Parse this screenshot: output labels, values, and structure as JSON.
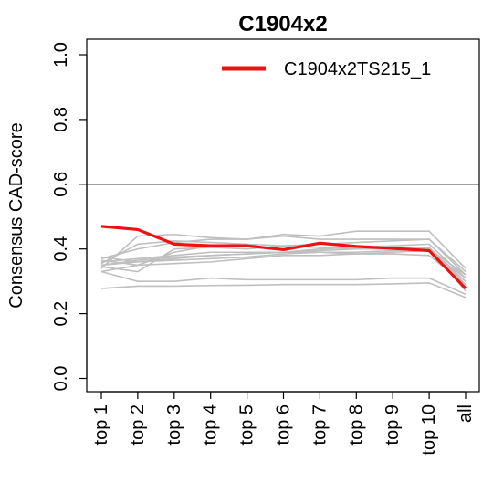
{
  "chart_data": {
    "type": "line",
    "title": "C1904x2",
    "ylabel": "Consensus CAD-score",
    "xlabel": "",
    "ylim": [
      0.0,
      1.0
    ],
    "yticks": [
      "0.0",
      "0.2",
      "0.4",
      "0.6",
      "0.8",
      "1.0"
    ],
    "ytick_values": [
      0.0,
      0.2,
      0.4,
      0.6,
      0.8,
      1.0
    ],
    "categories": [
      "top 1",
      "top 2",
      "top 3",
      "top 4",
      "top 5",
      "top 6",
      "top 7",
      "top 8",
      "top 9",
      "top 10",
      "all"
    ],
    "reference_line": 0.6,
    "grid": false,
    "legend_position": "top-right",
    "highlight_color": "#ee1111",
    "background_color": "#bfbfbf",
    "highlight_series": {
      "name": "C1904x2TS215_1",
      "values": [
        0.47,
        0.46,
        0.415,
        0.41,
        0.41,
        0.398,
        0.418,
        0.408,
        0.402,
        0.395,
        0.278
      ]
    },
    "background_series": [
      {
        "values": [
          0.365,
          0.35,
          0.39,
          0.41,
          0.41,
          0.4,
          0.42,
          0.41,
          0.4,
          0.4,
          0.3
        ]
      },
      {
        "values": [
          0.35,
          0.36,
          0.37,
          0.38,
          0.385,
          0.39,
          0.4,
          0.405,
          0.41,
          0.415,
          0.31
        ]
      },
      {
        "values": [
          0.34,
          0.44,
          0.445,
          0.435,
          0.43,
          0.445,
          0.44,
          0.455,
          0.455,
          0.455,
          0.34
        ]
      },
      {
        "values": [
          0.37,
          0.4,
          0.42,
          0.43,
          0.43,
          0.44,
          0.43,
          0.43,
          0.43,
          0.43,
          0.33
        ]
      },
      {
        "values": [
          0.355,
          0.415,
          0.425,
          0.42,
          0.415,
          0.41,
          0.415,
          0.42,
          0.425,
          0.43,
          0.32
        ]
      },
      {
        "values": [
          0.345,
          0.33,
          0.4,
          0.405,
          0.4,
          0.41,
          0.405,
          0.4,
          0.4,
          0.405,
          0.29
        ]
      },
      {
        "values": [
          0.33,
          0.35,
          0.355,
          0.36,
          0.37,
          0.38,
          0.38,
          0.385,
          0.39,
          0.395,
          0.31
        ]
      },
      {
        "values": [
          0.375,
          0.36,
          0.365,
          0.37,
          0.375,
          0.385,
          0.39,
          0.39,
          0.395,
          0.4,
          0.32
        ]
      },
      {
        "values": [
          0.33,
          0.3,
          0.3,
          0.31,
          0.305,
          0.305,
          0.305,
          0.305,
          0.31,
          0.31,
          0.26
        ]
      },
      {
        "values": [
          0.278,
          0.285,
          0.285,
          0.287,
          0.288,
          0.29,
          0.29,
          0.29,
          0.292,
          0.295,
          0.25
        ]
      },
      {
        "values": [
          0.36,
          0.37,
          0.38,
          0.39,
          0.39,
          0.39,
          0.39,
          0.385,
          0.385,
          0.38,
          0.29
        ]
      },
      {
        "values": [
          0.35,
          0.365,
          0.375,
          0.38,
          0.385,
          0.39,
          0.395,
          0.4,
          0.4,
          0.405,
          0.27
        ]
      }
    ]
  }
}
